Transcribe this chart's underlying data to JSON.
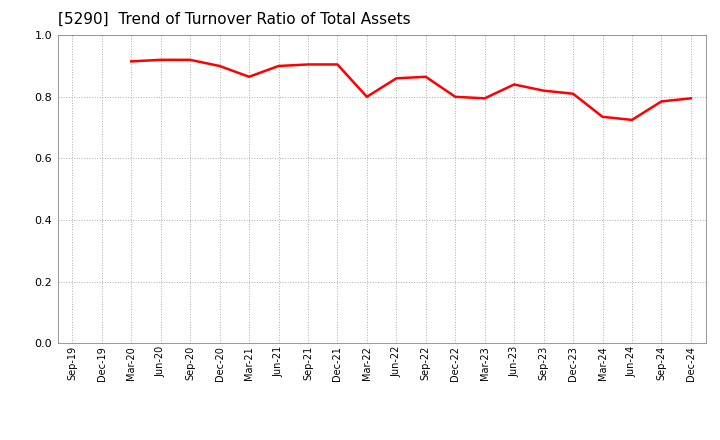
{
  "title": "[5290]  Trend of Turnover Ratio of Total Assets",
  "title_fontsize": 11,
  "line_color": "#ff0000",
  "line_width": 1.8,
  "background_color": "#ffffff",
  "grid_color": "#999999",
  "ylim": [
    0.0,
    1.0
  ],
  "yticks": [
    0.0,
    0.2,
    0.4,
    0.6,
    0.8,
    1.0
  ],
  "x_labels": [
    "Sep-19",
    "Dec-19",
    "Mar-20",
    "Jun-20",
    "Sep-20",
    "Dec-20",
    "Mar-21",
    "Jun-21",
    "Sep-21",
    "Dec-21",
    "Mar-22",
    "Jun-22",
    "Sep-22",
    "Dec-22",
    "Mar-23",
    "Jun-23",
    "Sep-23",
    "Dec-23",
    "Mar-24",
    "Jun-24",
    "Sep-24",
    "Dec-24"
  ],
  "values": [
    null,
    null,
    0.915,
    0.92,
    0.92,
    0.9,
    0.865,
    0.9,
    0.905,
    0.905,
    0.8,
    0.86,
    0.865,
    0.8,
    0.795,
    0.84,
    0.82,
    0.81,
    0.735,
    0.725,
    0.785,
    0.795
  ]
}
